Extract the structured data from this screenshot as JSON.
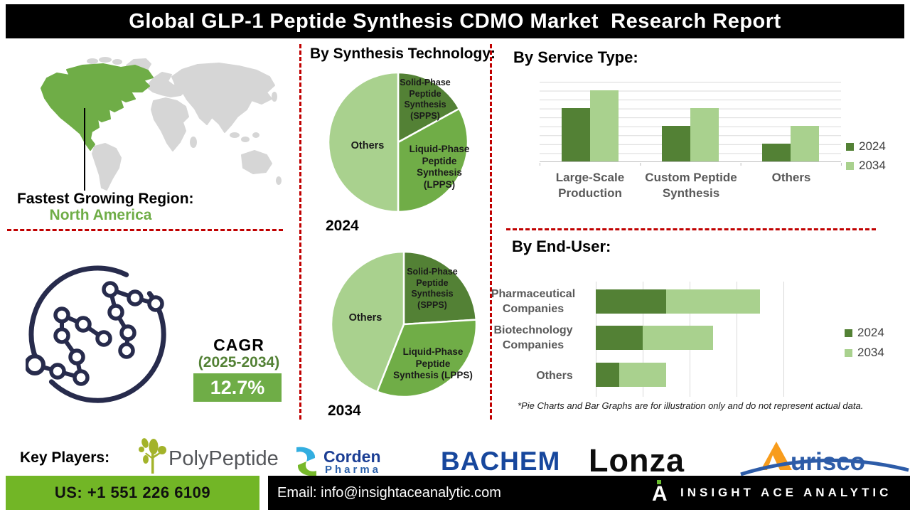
{
  "banner": {
    "title": "Global GLP-1 Peptide Synthesis CDMO Market  Research Report"
  },
  "map_section": {
    "heading": "Fastest Growing Region:",
    "region": "North America",
    "highlight_color": "#6fad47",
    "land_color": "#d6d6d6"
  },
  "cagr": {
    "label": "CAGR",
    "period": "(2025-2034)",
    "value": "12.7%",
    "box_color": "#6fad47"
  },
  "pies_heading": "By Synthesis Technology:",
  "chart_data": [
    {
      "type": "pie",
      "year": "2024",
      "slices": [
        {
          "label": "Solid-Phase\nPeptide\nSynthesis\n(SPPS)",
          "pct": 17,
          "color": "#538135"
        },
        {
          "label": "Liquid-Phase\nPeptide\nSynthesis\n(LPPS)",
          "pct": 33,
          "color": "#70ad47"
        },
        {
          "label": "Others",
          "pct": 50,
          "color": "#a9d18e"
        }
      ]
    },
    {
      "type": "pie",
      "year": "2034",
      "slices": [
        {
          "label": "Solid-Phase\nPeptide\nSynthesis\n(SPPS)",
          "pct": 24,
          "color": "#538135"
        },
        {
          "label": "Liquid-Phase\nPeptide\nSynthesis (LPPS)",
          "pct": 32,
          "color": "#70ad47"
        },
        {
          "label": "Others",
          "pct": 44,
          "color": "#a9d18e"
        }
      ]
    },
    {
      "type": "bar",
      "title": "By Service Type:",
      "categories": [
        "Large-Scale\nProduction",
        "Custom Peptide\nSynthesis",
        "Others"
      ],
      "series": [
        {
          "name": "2024",
          "color": "#538135",
          "values": [
            6,
            4,
            2
          ]
        },
        {
          "name": "2034",
          "color": "#a9d18e",
          "values": [
            8,
            6,
            4
          ]
        }
      ],
      "ylim": [
        0,
        9
      ],
      "grid": true,
      "legend_position": "right"
    },
    {
      "type": "stacked-hbar",
      "title": "By End-User:",
      "categories": [
        "Pharmaceutical\nCompanies",
        "Biotechnology\nCompanies",
        "Others"
      ],
      "series": [
        {
          "name": "2024",
          "color": "#538135",
          "values": [
            1.5,
            1,
            0.5
          ]
        },
        {
          "name": "2034",
          "color": "#a9d18e",
          "values": [
            2,
            1.5,
            1
          ]
        }
      ],
      "xlim": [
        0,
        4
      ],
      "grid": true,
      "legend_position": "right"
    }
  ],
  "footnote": "*Pie Charts and Bar Graphs are for illustration only and do not represent actual data.",
  "key_players": {
    "heading": "Key Players:",
    "polypeptide": "PolyPeptide",
    "corden": "Corden",
    "corden_sub": "Pharma",
    "bachem": "BACHEM",
    "lonza": "Lonza",
    "aurisco": "urisco"
  },
  "footer": {
    "phone": "US: +1 551 226 6109",
    "email": "Email: info@insightaceanalytic.com",
    "brand": "INSIGHT ACE ANALYTIC",
    "brand_initial": "A"
  }
}
